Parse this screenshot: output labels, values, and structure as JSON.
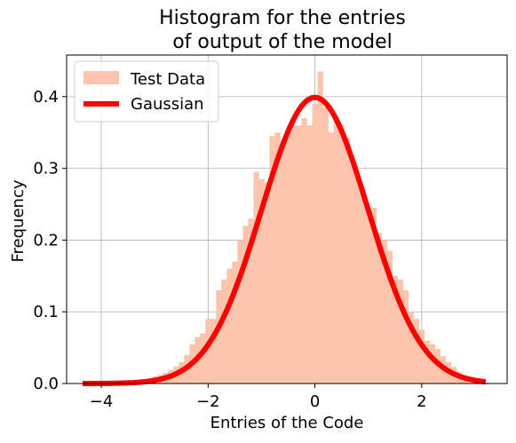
{
  "chart_data": {
    "type": "bar",
    "title_line1": "Histogram for the entries",
    "title_line2": "of output of the model",
    "xlabel": "Entries of the Code",
    "ylabel": "Frequency",
    "xlim": [
      -4.65,
      3.6
    ],
    "ylim": [
      0,
      0.458
    ],
    "grid": true,
    "legend_position": "top-left",
    "x_ticks": [
      -4,
      -2,
      0,
      2
    ],
    "x_tick_labels": [
      "−4",
      "−2",
      "0",
      "2"
    ],
    "y_ticks": [
      0,
      0.1,
      0.2,
      0.3,
      0.4
    ],
    "y_tick_labels": [
      "0.0",
      "0.1",
      "0.2",
      "0.3",
      "0.4"
    ],
    "bin_range": [
      -4.35,
      3.25
    ],
    "bin_width": 0.1,
    "hist_values": [
      0.002,
      0.001,
      0.0,
      0.002,
      0.001,
      0.002,
      0.003,
      0.002,
      0.003,
      0.004,
      0.005,
      0.006,
      0.007,
      0.01,
      0.012,
      0.015,
      0.019,
      0.024,
      0.03,
      0.04,
      0.055,
      0.065,
      0.07,
      0.09,
      0.09,
      0.13,
      0.145,
      0.16,
      0.17,
      0.2,
      0.22,
      0.23,
      0.295,
      0.285,
      0.28,
      0.345,
      0.35,
      0.33,
      0.35,
      0.36,
      0.36,
      0.37,
      0.36,
      0.39,
      0.435,
      0.385,
      0.35,
      0.37,
      0.36,
      0.343,
      0.305,
      0.29,
      0.265,
      0.24,
      0.245,
      0.21,
      0.2,
      0.185,
      0.15,
      0.145,
      0.13,
      0.1,
      0.09,
      0.075,
      0.06,
      0.055,
      0.048,
      0.038,
      0.03,
      0.023,
      0.016,
      0.011,
      0.007,
      0.004,
      0.002,
      0.001
    ],
    "gaussian": {
      "mean": 0,
      "std": 1,
      "x_range": [
        -4.35,
        3.2
      ]
    },
    "series": [
      {
        "name": "Test Data",
        "color": "#fcc4ad",
        "kind": "histogram"
      },
      {
        "name": "Gaussian",
        "color": "#ff0000",
        "kind": "line"
      }
    ]
  }
}
